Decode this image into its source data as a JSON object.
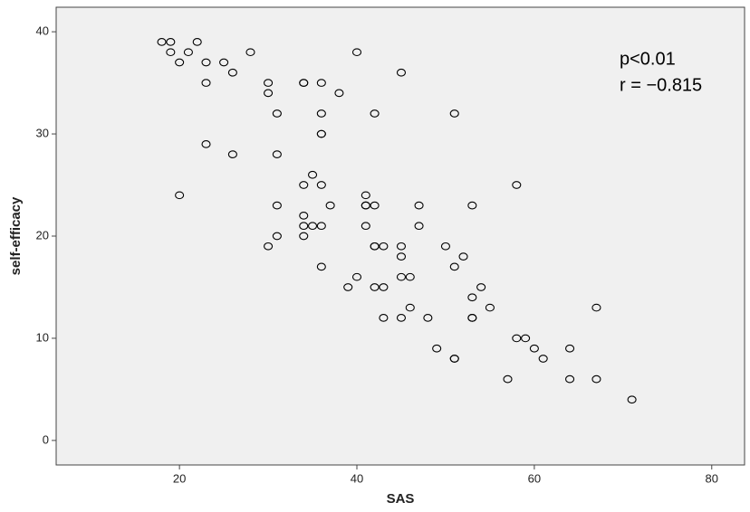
{
  "chart_data": {
    "type": "scatter",
    "x_label": "SAS",
    "y_label": "self-efficacy",
    "annotations": [
      "p<0.01",
      "r = −0.815"
    ],
    "x": [
      18,
      19,
      19,
      20,
      21,
      22,
      23,
      23,
      25,
      26,
      28,
      30,
      30,
      31,
      34,
      34,
      36,
      38,
      36,
      36,
      36,
      40,
      45,
      42,
      51,
      23,
      26,
      31,
      20,
      31,
      34,
      35,
      36,
      37,
      34,
      34,
      35,
      36,
      34,
      31,
      30,
      41,
      41,
      41,
      42,
      41,
      47,
      47,
      53,
      58,
      36,
      42,
      42,
      43,
      45,
      45,
      50,
      52,
      51,
      40,
      39,
      42,
      43,
      45,
      46,
      54,
      53,
      55,
      46,
      43,
      45,
      48,
      53,
      53,
      58,
      59,
      60,
      61,
      64,
      67,
      49,
      51,
      51,
      57,
      64,
      67,
      71
    ],
    "values": [
      39,
      39,
      38,
      37,
      38,
      39,
      37,
      35,
      37,
      36,
      38,
      35,
      34,
      32,
      35,
      35,
      35,
      34,
      32,
      30,
      30,
      38,
      36,
      32,
      32,
      29,
      28,
      28,
      24,
      23,
      25,
      26,
      25,
      23,
      22,
      21,
      21,
      21,
      20,
      20,
      19,
      24,
      23,
      23,
      23,
      21,
      23,
      21,
      23,
      25,
      17,
      19,
      19,
      19,
      19,
      18,
      19,
      18,
      17,
      16,
      15,
      15,
      15,
      16,
      16,
      15,
      14,
      13,
      13,
      12,
      12,
      12,
      12,
      12,
      10,
      10,
      9,
      8,
      9,
      13,
      9,
      8,
      8,
      6,
      6,
      6,
      4
    ],
    "marker_color": "#000000",
    "background": "#f0f0f0",
    "xlim": [
      6.1,
      83.7
    ],
    "ylim": [
      -2.4,
      42.4
    ],
    "xticks": [
      20,
      40,
      60,
      80
    ],
    "yticks": [
      0,
      10,
      20,
      30,
      40
    ],
    "grid": false
  }
}
